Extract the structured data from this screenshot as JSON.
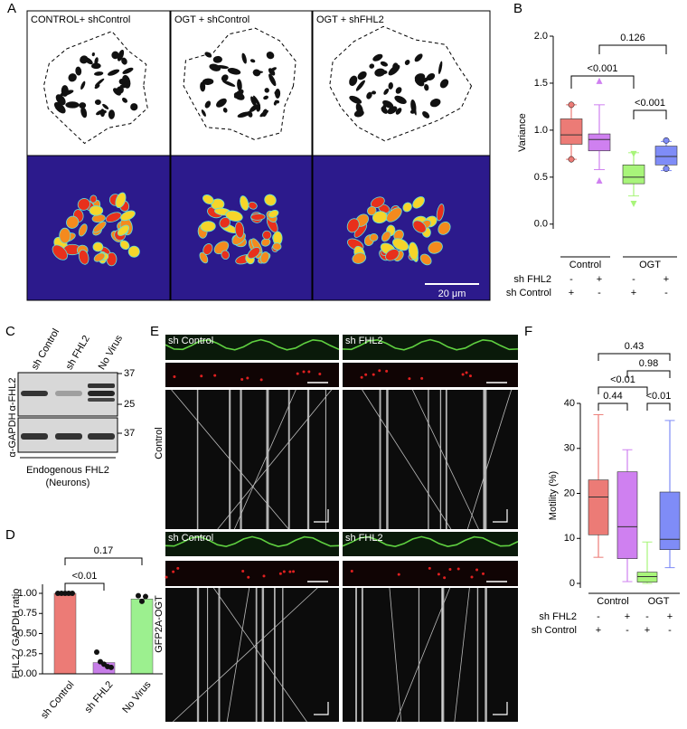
{
  "panel_labels": [
    "A",
    "B",
    "C",
    "D",
    "E",
    "F"
  ],
  "panel_a": {
    "conditions": [
      "CONTROL+ shControl",
      "OGT + shControl",
      "OGT + shFHL2"
    ],
    "scale_bar": "20 μm"
  },
  "panel_c": {
    "lanes": [
      "sh Control",
      "sh FHL2",
      "No Virus"
    ],
    "antibodies": [
      "α-FHL2",
      "α-GAPDH"
    ],
    "markers": [
      "37",
      "25",
      "37"
    ],
    "caption": [
      "Endogenous FHL2",
      "(Neurons)"
    ]
  },
  "panel_e": {
    "columns": [
      "sh Control",
      "sh FHL2"
    ],
    "rows": [
      "Control",
      "GFP2A-OGT"
    ]
  },
  "chart_data": [
    {
      "type": "box",
      "ylabel": "Variance",
      "ylim": [
        -0.05,
        2.0
      ],
      "yticks": [
        {
          "value": 0,
          "label": "0.0"
        },
        0.5,
        {
          "value": 1,
          "label": "1.0"
        },
        1.5,
        {
          "value": 2,
          "label": "2.0"
        }
      ],
      "groups": [
        "Control",
        "OGT"
      ],
      "rows": [
        {
          "label": "sh FHL2",
          "signs": [
            "-",
            "+",
            "-",
            "+"
          ]
        },
        {
          "label": "sh Control",
          "signs": [
            "+",
            "-",
            "+",
            "-"
          ]
        }
      ],
      "boxes": [
        {
          "color": "#ec7b76",
          "marker": "circle",
          "whisker_low": 0.69,
          "q1": 0.85,
          "median": 0.95,
          "q3": 1.12,
          "whisker_high": 1.27,
          "points": [
            1.27,
            0.69
          ]
        },
        {
          "color": "#cf80f0",
          "marker": "triangle",
          "whisker_low": 0.58,
          "q1": 0.78,
          "median": 0.9,
          "q3": 0.96,
          "whisker_high": 1.27,
          "points": [
            1.52,
            0.46
          ]
        },
        {
          "color": "#a8f57a",
          "marker": "triangle-down",
          "whisker_low": 0.3,
          "q1": 0.43,
          "median": 0.5,
          "q3": 0.63,
          "whisker_high": 0.76,
          "points": [
            0.75,
            0.22
          ]
        },
        {
          "color": "#7f8cf7",
          "marker": "circle",
          "whisker_low": 0.57,
          "q1": 0.63,
          "median": 0.72,
          "q3": 0.83,
          "whisker_high": 0.88,
          "points": [
            0.89,
            0.59
          ]
        }
      ],
      "annotations": [
        "<0.001",
        "0.126",
        "<0.001"
      ]
    },
    {
      "type": "bar",
      "ylabel": "FHL2 / GAPDH ratio",
      "ylim": [
        0,
        1.0
      ],
      "yticks": [
        {
          "value": 0,
          "label": "0.00"
        },
        0.25,
        {
          "value": 0.5,
          "label": "0.50"
        },
        0.75,
        {
          "value": 1,
          "label": "1.00"
        }
      ],
      "categories": [
        "sh Control",
        "sh FHL2",
        "No Virus"
      ],
      "values": [
        1.0,
        0.14,
        0.93
      ],
      "colors": [
        "#ec7b76",
        "#c77ee8",
        "#9cf08f"
      ],
      "points": [
        [
          1.0,
          1.0,
          1.0,
          1.0,
          1.0
        ],
        [
          0.27,
          0.15,
          0.12,
          0.09,
          0.08
        ],
        [
          0.97,
          0.9,
          0.96
        ]
      ],
      "annotations": [
        "<0.01",
        "0.17"
      ]
    },
    {
      "type": "box",
      "ylabel": "Motility (%)",
      "ylim": [
        -1,
        40
      ],
      "yticks": [
        0,
        10,
        20,
        30,
        40
      ],
      "groups": [
        "Control",
        "OGT"
      ],
      "rows": [
        {
          "label": "sh FHL2",
          "signs": [
            "-",
            "+",
            "-",
            "+"
          ]
        },
        {
          "label": "sh Control",
          "signs": [
            "+",
            "-",
            "+",
            "-"
          ]
        }
      ],
      "boxes": [
        {
          "color": "#ec7b76",
          "marker": "none",
          "whisker_low": 5.8,
          "q1": 10.8,
          "median": 19.2,
          "q3": 23,
          "whisker_high": 37.5,
          "points": []
        },
        {
          "color": "#cf80f0",
          "marker": "none",
          "whisker_low": 0.4,
          "q1": 5.5,
          "median": 12.6,
          "q3": 24.8,
          "whisker_high": 29.7,
          "points": []
        },
        {
          "color": "#a8f57a",
          "marker": "none",
          "whisker_low": 0,
          "q1": 0.3,
          "median": 1.5,
          "q3": 2.5,
          "whisker_high": 9.2,
          "points": []
        },
        {
          "color": "#7f8cf7",
          "marker": "none",
          "whisker_low": 3.5,
          "q1": 7.5,
          "median": 9.8,
          "q3": 20.3,
          "whisker_high": 36.2,
          "points": []
        }
      ],
      "annotations": [
        "0.43",
        "0.98",
        "<0.01",
        "0.44",
        "<0.01"
      ]
    }
  ]
}
